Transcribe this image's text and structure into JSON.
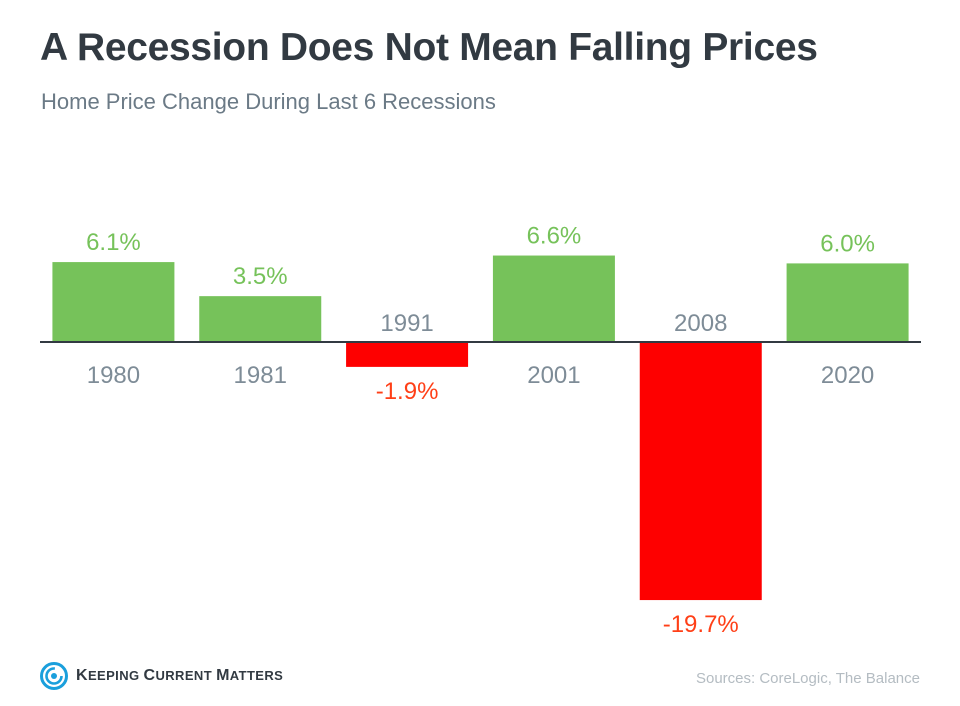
{
  "colors": {
    "positive": "#76c25a",
    "negative": "#fe0000",
    "negative_label": "#ff3f17",
    "category_label": "#7e8c97",
    "baseline": "#323a42",
    "title": "#323a42",
    "subtitle": "#6b7a86",
    "sources": "#b4bcc2",
    "logo": "#1a9fdc"
  },
  "header": {
    "title": "A Recession Does Not Mean Falling Prices",
    "subtitle": "Home Price Change During Last 6 Recessions"
  },
  "chart_data": {
    "type": "bar",
    "title": "A Recession Does Not Mean Falling Prices",
    "subtitle": "Home Price Change During Last 6 Recessions",
    "categories": [
      "1980",
      "1981",
      "1991",
      "2001",
      "2008",
      "2020"
    ],
    "values": [
      6.1,
      3.5,
      -1.9,
      6.6,
      -19.7,
      6.0
    ],
    "value_labels": [
      "6.1%",
      "3.5%",
      "-1.9%",
      "6.6%",
      "-19.7%",
      "6.0%"
    ],
    "unit": "%",
    "xlabel": "",
    "ylabel": "",
    "ylim": [
      -20,
      7
    ],
    "grid": false,
    "legend": "none"
  },
  "footer": {
    "logo_icon": "kcm-swirl-logo",
    "logo_text_first": "K",
    "logo_text_rest": "EEPING ",
    "logo_text_c": "C",
    "logo_text_c_rest": "URRENT ",
    "logo_text_m": "M",
    "logo_text_m_rest": "ATTERS",
    "logo_full_text": "Keeping Current Matters",
    "sources": "Sources: CoreLogic, The Balance"
  }
}
